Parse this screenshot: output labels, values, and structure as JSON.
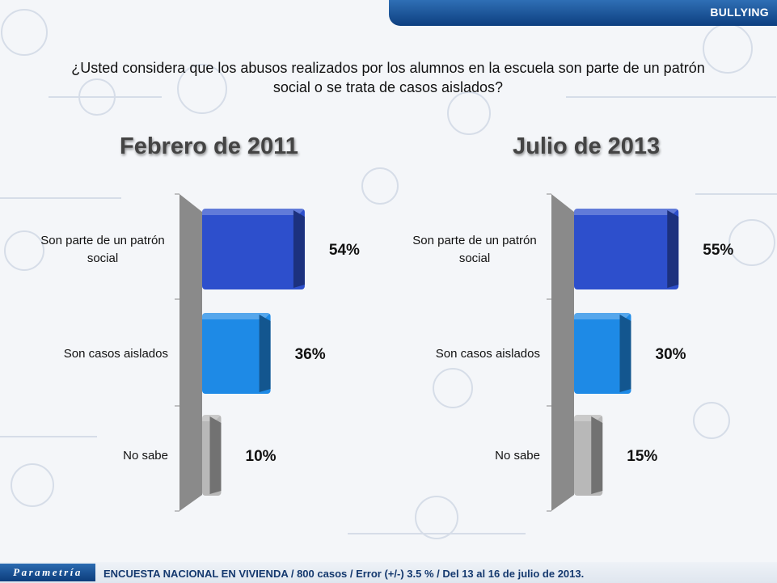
{
  "header": {
    "tab_label": "BULLYING"
  },
  "question": {
    "line1": "¿Usted considera que los abusos realizados por los alumnos en la escuela son parte de un patrón",
    "line2": "social o se trata de casos aislados?"
  },
  "chart_data": [
    {
      "type": "bar",
      "orientation": "horizontal",
      "title": "Febrero de 2011",
      "categories": [
        "Son parte de un patrón social",
        "Son casos aislados",
        "No sabe"
      ],
      "values": [
        54,
        36,
        10
      ],
      "value_labels": [
        "54%",
        "36%",
        "10%"
      ],
      "unit": "%",
      "xlim": [
        0,
        100
      ],
      "colors": [
        "#2d4fcc",
        "#1e8ae6",
        "#b8b8b8"
      ]
    },
    {
      "type": "bar",
      "orientation": "horizontal",
      "title": "Julio de 2013",
      "categories": [
        "Son parte de un patrón social",
        "Son casos aislados",
        "No sabe"
      ],
      "values": [
        55,
        30,
        15
      ],
      "value_labels": [
        "55%",
        "30%",
        "15%"
      ],
      "unit": "%",
      "xlim": [
        0,
        100
      ],
      "colors": [
        "#2d4fcc",
        "#1e8ae6",
        "#b8b8b8"
      ]
    }
  ],
  "footer": {
    "logo_text": "Parametría",
    "note": "ENCUESTA NACIONAL EN VIVIENDA / 800 casos / Error (+/-) 3.5 % / Del 13 al 16 de julio de 2013."
  }
}
